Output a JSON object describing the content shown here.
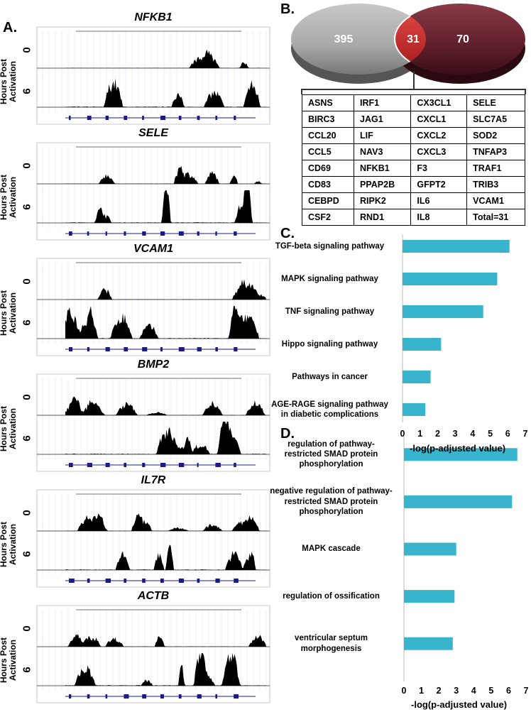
{
  "panel_labels": [
    "A.",
    "B.",
    "C.",
    "D."
  ],
  "track_axis": {
    "title": "Hours Post Activation",
    "times": [
      "0",
      "6"
    ]
  },
  "tracks": [
    "NFKB1",
    "SELE",
    "VCAM1",
    "BMP2",
    "IL7R",
    "ACTB"
  ],
  "venn": {
    "left": 395,
    "overlap": 31,
    "right": 70
  },
  "gene_table": {
    "rows": [
      [
        "ASNS",
        "IRF1",
        "CX3CL1",
        "SELE"
      ],
      [
        "BIRC3",
        "JAG1",
        "CXCL1",
        "SLC7A5"
      ],
      [
        "CCL20",
        "LIF",
        "CXCL2",
        "SOD2"
      ],
      [
        "CCL5",
        "NAV3",
        "CXCL3",
        "TNFAP3"
      ],
      [
        "CD69",
        "NFKB1",
        "F3",
        "TRAF1"
      ],
      [
        "CD83",
        "PPAP2B",
        "GFPT2",
        "TRIB3"
      ],
      [
        "CEBPD",
        "RIPK2",
        "IL6",
        "VCAM1"
      ],
      [
        "CSF2",
        "RND1",
        "IL8",
        "Total=31"
      ]
    ]
  },
  "chart_data": [
    {
      "type": "bar",
      "orientation": "horizontal",
      "categories": [
        "TGF-beta signaling pathway",
        "MAPK signaling pathway",
        "TNF signaling pathway",
        "Hippo signaling pathway",
        "Pathways in cancer",
        "AGE-RAGE signaling pathway in diabetic complications"
      ],
      "values": [
        6.1,
        5.4,
        4.6,
        2.2,
        1.6,
        1.3
      ],
      "color": "#38b4cc",
      "xlim": [
        0,
        7
      ],
      "xticks": [
        0,
        1,
        2,
        3,
        4,
        5,
        6,
        7
      ],
      "xlabel": "-log(p-adjusted value)"
    },
    {
      "type": "bar",
      "orientation": "horizontal",
      "categories": [
        "regulation of pathway-restricted SMAD protein phosphorylation",
        "negative regulation of pathway-restricted SMAD protein phosphorylation",
        "MAPK cascade",
        "regulation of ossification",
        "ventricular septum morphogenesis"
      ],
      "values": [
        6.5,
        6.2,
        3.0,
        2.9,
        2.8
      ],
      "color": "#38b4cc",
      "xlim": [
        0,
        7
      ],
      "xticks": [
        0,
        1,
        2,
        3,
        4,
        5,
        6,
        7
      ],
      "xlabel": "-log(p-adjusted value)"
    }
  ]
}
